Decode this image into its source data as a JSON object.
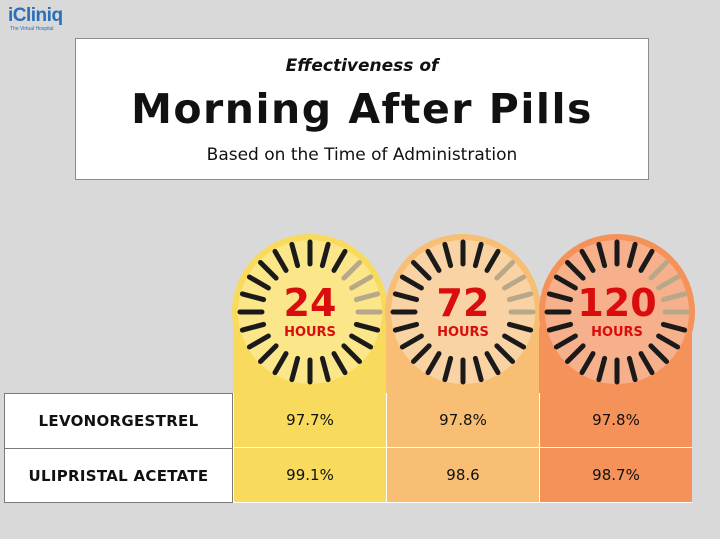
{
  "logo": {
    "name": "iCliniq",
    "tagline": "The Virtual Hospital"
  },
  "header": {
    "pretitle": "Effectiveness of",
    "title": "Morning After Pills",
    "subtitle": "Based on the Time of Administration"
  },
  "colors": {
    "col_24": "#f8da5c",
    "col_72": "#f7be74",
    "col_120": "#f5925a",
    "number_red": "#d90d0d",
    "dial_tick": "#1a1a1a"
  },
  "chart_data": {
    "type": "table",
    "columns": [
      {
        "number": "24",
        "unit": "HOURS"
      },
      {
        "number": "72",
        "unit": "HOURS"
      },
      {
        "number": "120",
        "unit": "HOURS"
      }
    ],
    "rows": [
      {
        "label": "LEVONORGESTREL",
        "values": [
          "97.7%",
          "97.8%",
          "97.8%"
        ]
      },
      {
        "label": "ULIPRISTAL ACETATE",
        "values": [
          "99.1%",
          "98.6",
          "98.7%"
        ]
      }
    ]
  }
}
